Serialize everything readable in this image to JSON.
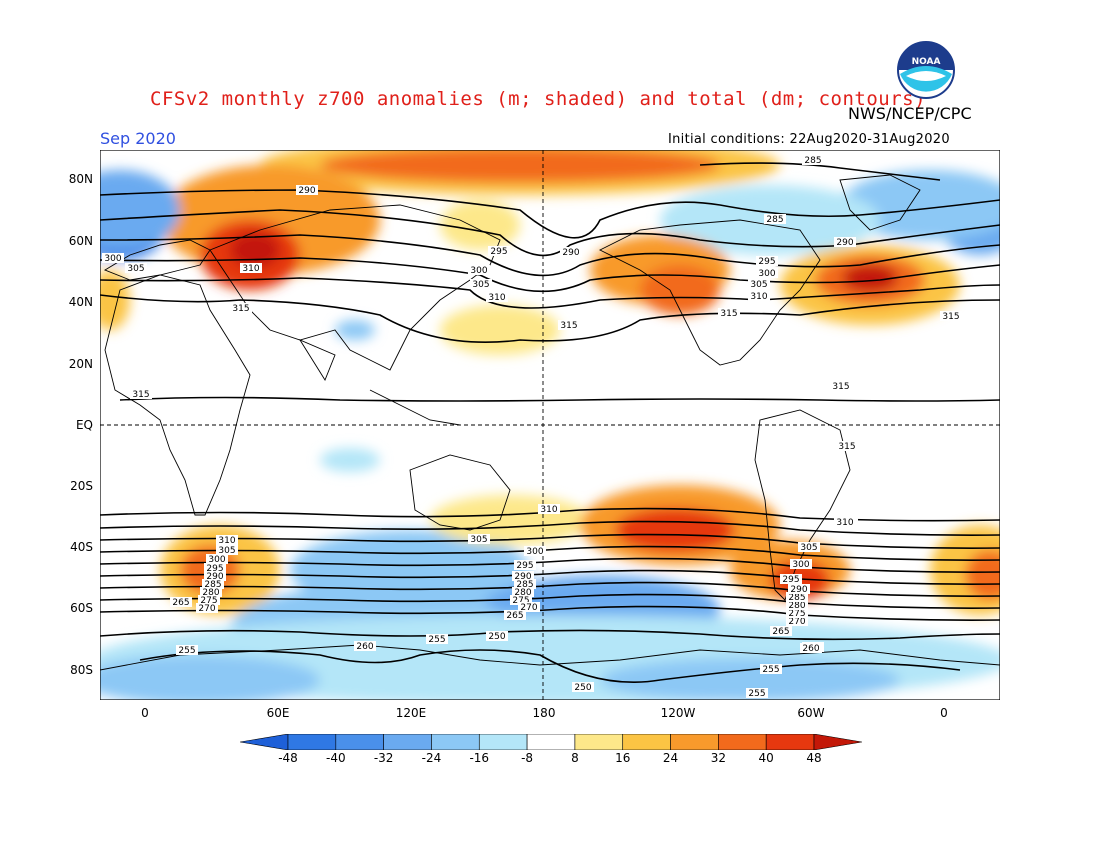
{
  "header": {
    "title": "CFSv2 monthly z700 anomalies (m; shaded) and total (dm; contours)",
    "agency": "NWS/NCEP/CPC",
    "month": "Sep 2020",
    "initial_conditions": "Initial conditions: 22Aug2020-31Aug2020",
    "logo_text": "NOAA"
  },
  "map": {
    "lat_labels": [
      "80N",
      "60N",
      "40N",
      "20N",
      "EQ",
      "20S",
      "40S",
      "60S",
      "80S"
    ],
    "lon_labels": [
      "0",
      "60E",
      "120E",
      "180",
      "120W",
      "60W",
      "0"
    ],
    "contour_labels": [
      "285",
      "290",
      "285",
      "290",
      "295",
      "300",
      "305",
      "310",
      "315",
      "300",
      "305",
      "310",
      "315",
      "290",
      "295",
      "300",
      "305",
      "310",
      "315",
      "315",
      "315",
      "315",
      "315",
      "310",
      "310",
      "305",
      "300",
      "295",
      "290",
      "285",
      "280",
      "275",
      "270",
      "265",
      "310",
      "305",
      "300",
      "295",
      "290",
      "285",
      "280",
      "275",
      "270",
      "265",
      "260",
      "255",
      "250",
      "255",
      "260",
      "255",
      "250",
      "255",
      "260",
      "265",
      "270",
      "275",
      "280",
      "285",
      "290",
      "295",
      "300",
      "305",
      "310",
      "305",
      "300",
      "295",
      "290",
      "285",
      "280",
      "275",
      "270",
      "265"
    ]
  },
  "colorbar": {
    "labels": [
      "-48",
      "-40",
      "-32",
      "-24",
      "-16",
      "-8",
      "8",
      "16",
      "24",
      "32",
      "40",
      "48"
    ],
    "colors": [
      "#1e60d8",
      "#2f78e4",
      "#4a90ea",
      "#6aaaf0",
      "#8cc8f5",
      "#b4e6f8",
      "#ffffff",
      "#fde88a",
      "#fbc444",
      "#f89a2c",
      "#f26a1c",
      "#e6380f",
      "#c31808"
    ]
  }
}
